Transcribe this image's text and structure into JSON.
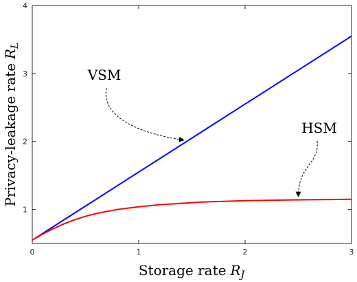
{
  "chart_data": {
    "type": "line",
    "xlabel": "Storage rate",
    "xlabel_symbol": "R",
    "xlabel_subscript": "J",
    "ylabel": "Privacy-leakage rate",
    "ylabel_symbol": "R",
    "ylabel_subscript": "L",
    "xlim": [
      0,
      3
    ],
    "ylim": [
      0.5,
      4
    ],
    "xticks": [
      0,
      1,
      2,
      3
    ],
    "yticks": [
      1,
      2,
      3,
      4
    ],
    "grid": false,
    "series": [
      {
        "name": "VSM",
        "color": "#0000ff",
        "x": [
          0,
          0.5,
          1,
          1.5,
          2,
          2.5,
          3
        ],
        "y": [
          0.55,
          1.05,
          1.55,
          2.05,
          2.55,
          3.05,
          3.55
        ]
      },
      {
        "name": "HSM",
        "color": "#ff0000",
        "x": [
          0,
          0.1,
          0.2,
          0.3,
          0.4,
          0.5,
          0.6,
          0.7,
          0.8,
          0.9,
          1.0,
          1.2,
          1.4,
          1.6,
          1.8,
          2.0,
          2.2,
          2.4,
          2.6,
          2.8,
          3.0
        ],
        "y": [
          0.55,
          0.64,
          0.72,
          0.79,
          0.85,
          0.9,
          0.94,
          0.97,
          1.0,
          1.02,
          1.04,
          1.07,
          1.09,
          1.11,
          1.12,
          1.13,
          1.135,
          1.14,
          1.143,
          1.146,
          1.15
        ]
      }
    ],
    "annotations": [
      {
        "text": "VSM",
        "target": [
          1.45,
          2.03
        ]
      },
      {
        "text": "HSM",
        "target": [
          2.5,
          1.15
        ]
      }
    ]
  }
}
